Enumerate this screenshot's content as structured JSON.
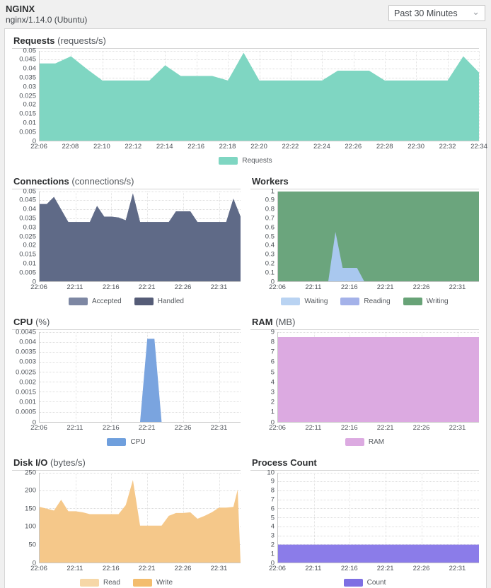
{
  "header": {
    "title": "NGINX",
    "subtitle": "nginx/1.14.0 (Ubuntu)",
    "time_range_selected": "Past 30 Minutes",
    "chevron_glyph": "⌄"
  },
  "chart_data": [
    {
      "id": "requests",
      "type": "area",
      "title": "Requests",
      "unit": "(requests/s)",
      "ylim": [
        0,
        0.05
      ],
      "grid": true,
      "legend_position": "bottom",
      "yticks": [
        "0.05",
        "0.045",
        "0.04",
        "0.035",
        "0.03",
        "0.025",
        "0.02",
        "0.015",
        "0.01",
        "0.005",
        "0"
      ],
      "xticks": [
        [
          "22:06",
          6
        ],
        [
          "22:08",
          8
        ],
        [
          "22:10",
          10
        ],
        [
          "22:12",
          12
        ],
        [
          "22:14",
          14
        ],
        [
          "22:16",
          16
        ],
        [
          "22:18",
          18
        ],
        [
          "22:20",
          20
        ],
        [
          "22:22",
          22
        ],
        [
          "22:24",
          24
        ],
        [
          "22:26",
          26
        ],
        [
          "22:28",
          28
        ],
        [
          "22:30",
          30
        ],
        [
          "22:32",
          32
        ],
        [
          "22:34",
          34
        ]
      ],
      "x_range": [
        6,
        34
      ],
      "series": [
        {
          "name": "Requests",
          "color": "#7fd6c2",
          "points": [
            [
              6,
              0.043
            ],
            [
              7,
              0.043
            ],
            [
              8,
              0.047
            ],
            [
              9,
              0.04
            ],
            [
              10,
              0.0335
            ],
            [
              13,
              0.0335
            ],
            [
              14,
              0.042
            ],
            [
              15,
              0.036
            ],
            [
              17,
              0.036
            ],
            [
              18,
              0.0335
            ],
            [
              19,
              0.049
            ],
            [
              20,
              0.0335
            ],
            [
              24,
              0.0335
            ],
            [
              25,
              0.039
            ],
            [
              27,
              0.039
            ],
            [
              28,
              0.0335
            ],
            [
              32,
              0.0335
            ],
            [
              33,
              0.047
            ],
            [
              34,
              0.038
            ]
          ]
        }
      ],
      "legend": [
        {
          "label": "Requests",
          "color": "#7fd6c2"
        }
      ]
    },
    {
      "id": "connections",
      "type": "area",
      "title": "Connections",
      "unit": "(connections/s)",
      "ylim": [
        0,
        0.05
      ],
      "grid": true,
      "legend_position": "bottom",
      "yticks": [
        "0.05",
        "0.045",
        "0.04",
        "0.035",
        "0.03",
        "0.025",
        "0.02",
        "0.015",
        "0.01",
        "0.005",
        "0"
      ],
      "xticks": [
        [
          "22:06",
          6
        ],
        [
          "22:11",
          11
        ],
        [
          "22:16",
          16
        ],
        [
          "22:21",
          21
        ],
        [
          "22:26",
          26
        ],
        [
          "22:31",
          31
        ]
      ],
      "x_range": [
        6,
        34
      ],
      "series": [
        {
          "name": "Accepted",
          "color": "#7d87a3",
          "points": [
            [
              6,
              0.043
            ],
            [
              7,
              0.043
            ],
            [
              8,
              0.047
            ],
            [
              9,
              0.04
            ],
            [
              10,
              0.033
            ],
            [
              13,
              0.033
            ],
            [
              14,
              0.042
            ],
            [
              15,
              0.036
            ],
            [
              16,
              0.036
            ],
            [
              17,
              0.0355
            ],
            [
              18,
              0.034
            ],
            [
              19,
              0.049
            ],
            [
              20,
              0.033
            ],
            [
              24,
              0.033
            ],
            [
              25,
              0.039
            ],
            [
              27,
              0.039
            ],
            [
              28,
              0.033
            ],
            [
              32,
              0.033
            ],
            [
              33,
              0.046
            ],
            [
              34,
              0.036
            ]
          ]
        },
        {
          "name": "Handled",
          "color": "#5f6a87",
          "points": [
            [
              6,
              0.043
            ],
            [
              7,
              0.043
            ],
            [
              8,
              0.047
            ],
            [
              9,
              0.04
            ],
            [
              10,
              0.033
            ],
            [
              13,
              0.033
            ],
            [
              14,
              0.042
            ],
            [
              15,
              0.036
            ],
            [
              16,
              0.036
            ],
            [
              17,
              0.0355
            ],
            [
              18,
              0.034
            ],
            [
              19,
              0.049
            ],
            [
              20,
              0.033
            ],
            [
              24,
              0.033
            ],
            [
              25,
              0.039
            ],
            [
              27,
              0.039
            ],
            [
              28,
              0.033
            ],
            [
              32,
              0.033
            ],
            [
              33,
              0.046
            ],
            [
              34,
              0.036
            ]
          ]
        }
      ],
      "legend": [
        {
          "label": "Accepted",
          "color": "#7d87a3"
        },
        {
          "label": "Handled",
          "color": "#555c77"
        }
      ]
    },
    {
      "id": "workers",
      "type": "area",
      "title": "Workers",
      "unit": "",
      "ylim": [
        0,
        1
      ],
      "grid": true,
      "legend_position": "bottom",
      "yticks": [
        "1",
        "0.9",
        "0.8",
        "0.7",
        "0.6",
        "0.5",
        "0.4",
        "0.3",
        "0.2",
        "0.1",
        "0"
      ],
      "xticks": [
        [
          "22:06",
          6
        ],
        [
          "22:11",
          11
        ],
        [
          "22:16",
          16
        ],
        [
          "22:21",
          21
        ],
        [
          "22:26",
          26
        ],
        [
          "22:31",
          31
        ]
      ],
      "x_range": [
        6,
        34
      ],
      "series": [
        {
          "name": "Writing",
          "color": "#6ba57d",
          "points": [
            [
              6,
              1
            ],
            [
              34,
              1
            ]
          ]
        },
        {
          "name": "Reading",
          "color": "#a4b2e9",
          "points": [
            [
              6,
              0
            ],
            [
              34,
              0
            ]
          ]
        },
        {
          "name": "Waiting",
          "color": "#a9c8ef",
          "points": [
            [
              6,
              0
            ],
            [
              13,
              0
            ],
            [
              14,
              0.55
            ],
            [
              15,
              0.15
            ],
            [
              17,
              0.15
            ],
            [
              18,
              0
            ],
            [
              34,
              0
            ]
          ]
        }
      ],
      "legend": [
        {
          "label": "Waiting",
          "color": "#b9d3f2"
        },
        {
          "label": "Reading",
          "color": "#a4b2e9"
        },
        {
          "label": "Writing",
          "color": "#68a377"
        }
      ]
    },
    {
      "id": "cpu",
      "type": "area",
      "title": "CPU",
      "unit": "(%)",
      "ylim": [
        0,
        0.0045
      ],
      "grid": true,
      "legend_position": "bottom",
      "yticks": [
        "0.0045",
        "0.004",
        "0.0035",
        "0.003",
        "0.0025",
        "0.002",
        "0.0015",
        "0.001",
        "0.0005",
        "0"
      ],
      "xticks": [
        [
          "22:06",
          6
        ],
        [
          "22:11",
          11
        ],
        [
          "22:16",
          16
        ],
        [
          "22:21",
          21
        ],
        [
          "22:26",
          26
        ],
        [
          "22:31",
          31
        ]
      ],
      "x_range": [
        6,
        34
      ],
      "series": [
        {
          "name": "CPU",
          "color": "#7aa4df",
          "points": [
            [
              6,
              0
            ],
            [
              20,
              0
            ],
            [
              21,
              0.00417
            ],
            [
              22,
              0.00417
            ],
            [
              23,
              0
            ],
            [
              34,
              0
            ]
          ]
        }
      ],
      "legend": [
        {
          "label": "CPU",
          "color": "#6f9fdd"
        }
      ]
    },
    {
      "id": "ram",
      "type": "area",
      "title": "RAM",
      "unit": "(MB)",
      "ylim": [
        0,
        9
      ],
      "grid": true,
      "legend_position": "bottom",
      "yticks": [
        "9",
        "8",
        "7",
        "6",
        "5",
        "4",
        "3",
        "2",
        "1",
        "0"
      ],
      "xticks": [
        [
          "22:06",
          6
        ],
        [
          "22:11",
          11
        ],
        [
          "22:16",
          16
        ],
        [
          "22:21",
          21
        ],
        [
          "22:26",
          26
        ],
        [
          "22:31",
          31
        ]
      ],
      "x_range": [
        6,
        34
      ],
      "series": [
        {
          "name": "RAM",
          "color": "#dcaae1",
          "points": [
            [
              6,
              8.5
            ],
            [
              34,
              8.5
            ]
          ]
        }
      ],
      "legend": [
        {
          "label": "RAM",
          "color": "#dcaae1"
        }
      ]
    },
    {
      "id": "disk-io",
      "type": "area",
      "title": "Disk I/O",
      "unit": "(bytes/s)",
      "ylim": [
        0,
        250
      ],
      "grid": true,
      "legend_position": "bottom",
      "yticks": [
        "250",
        "200",
        "150",
        "100",
        "50",
        "0"
      ],
      "xticks": [
        [
          "22:06",
          6
        ],
        [
          "22:11",
          11
        ],
        [
          "22:16",
          16
        ],
        [
          "22:21",
          21
        ],
        [
          "22:26",
          26
        ],
        [
          "22:31",
          31
        ]
      ],
      "x_range": [
        6,
        34
      ],
      "series": [
        {
          "name": "Read",
          "color": "#f5c88a",
          "points": [
            [
              6,
              155
            ],
            [
              7,
              150
            ],
            [
              8,
              145
            ],
            [
              9,
              175
            ],
            [
              10,
              143
            ],
            [
              11,
              143
            ],
            [
              12,
              140
            ],
            [
              13,
              135
            ],
            [
              17,
              135
            ],
            [
              18,
              160
            ],
            [
              19,
              230
            ],
            [
              20,
              103
            ],
            [
              23,
              103
            ],
            [
              24,
              130
            ],
            [
              25,
              138
            ],
            [
              26,
              138
            ],
            [
              27,
              140
            ],
            [
              28,
              122
            ],
            [
              29,
              130
            ],
            [
              30,
              140
            ],
            [
              31,
              153
            ],
            [
              32,
              153
            ],
            [
              33,
              155
            ],
            [
              33.6,
              203
            ],
            [
              34,
              0
            ]
          ]
        },
        {
          "name": "Write",
          "color": "#f3bd6e",
          "points": [
            [
              6,
              0
            ],
            [
              34,
              0
            ]
          ]
        }
      ],
      "legend": [
        {
          "label": "Read",
          "color": "#f6d7a7"
        },
        {
          "label": "Write",
          "color": "#f3bd6e"
        }
      ]
    },
    {
      "id": "process-count",
      "type": "area",
      "title": "Process Count",
      "unit": "",
      "ylim": [
        0,
        10
      ],
      "grid": true,
      "legend_position": "bottom",
      "yticks": [
        "10",
        "9",
        "8",
        "7",
        "6",
        "5",
        "4",
        "3",
        "2",
        "1",
        "0"
      ],
      "xticks": [
        [
          "22:06",
          6
        ],
        [
          "22:11",
          11
        ],
        [
          "22:16",
          16
        ],
        [
          "22:21",
          21
        ],
        [
          "22:26",
          26
        ],
        [
          "22:31",
          31
        ]
      ],
      "x_range": [
        6,
        34
      ],
      "series": [
        {
          "name": "Count",
          "color": "#8b7ce9",
          "points": [
            [
              6,
              2
            ],
            [
              34,
              2
            ]
          ]
        }
      ],
      "legend": [
        {
          "label": "Count",
          "color": "#7e6fe3"
        }
      ]
    }
  ]
}
